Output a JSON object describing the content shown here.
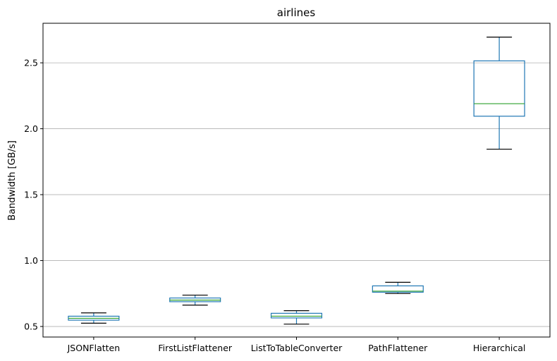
{
  "chart_data": {
    "type": "box",
    "title": "airlines",
    "xlabel": "",
    "ylabel": "Bandwidth [GB/s]",
    "ylim": [
      0.42,
      2.8
    ],
    "yticks": [
      0.5,
      1.0,
      1.5,
      2.0,
      2.5
    ],
    "ytick_labels": [
      "0.5",
      "1.0",
      "1.5",
      "2.0",
      "2.5"
    ],
    "grid": "horizontal",
    "categories": [
      "JSONFlatten",
      "FirstListFlattener",
      "ListToTableConverter",
      "PathFlattener",
      "Hierarchical"
    ],
    "boxes": [
      {
        "whisker_low": 0.525,
        "q1": 0.548,
        "median": 0.562,
        "q3": 0.578,
        "whisker_high": 0.603
      },
      {
        "whisker_low": 0.662,
        "q1": 0.688,
        "median": 0.7,
        "q3": 0.716,
        "whisker_high": 0.738
      },
      {
        "whisker_low": 0.518,
        "q1": 0.565,
        "median": 0.578,
        "q3": 0.6,
        "whisker_high": 0.62
      },
      {
        "whisker_low": 0.75,
        "q1": 0.76,
        "median": 0.768,
        "q3": 0.808,
        "whisker_high": 0.835
      },
      {
        "whisker_low": 1.845,
        "q1": 2.095,
        "median": 2.19,
        "q3": 2.515,
        "whisker_high": 2.695
      }
    ],
    "colors": {
      "box": "#1f77b4",
      "median": "#2ca02c",
      "whisker_cap": "#000000",
      "grid": "#b0b0b0",
      "axes": "#000000"
    }
  }
}
